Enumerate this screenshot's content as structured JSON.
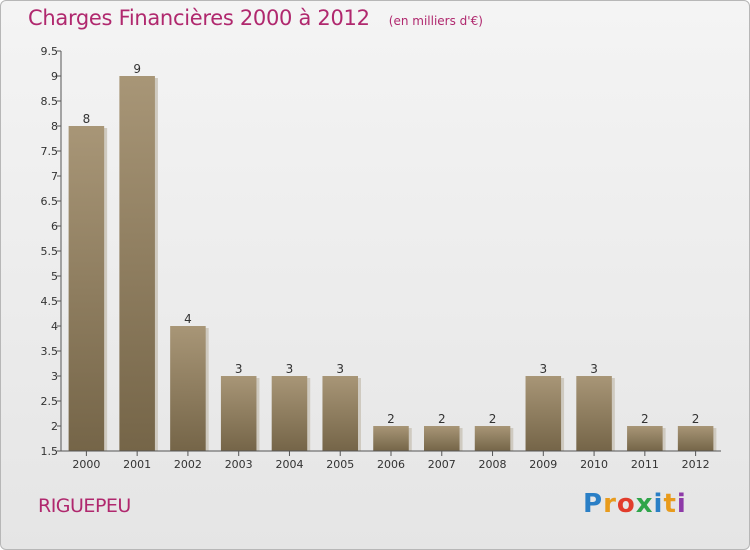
{
  "header": {
    "title": "Charges Financières 2000 à 2012",
    "subtitle": "(en milliers d'€)"
  },
  "footer": {
    "commune": "RIGUEPEU",
    "brand": "Proxiti",
    "brand_colors": [
      "#2a7fc6",
      "#e89b1c",
      "#e23c2c",
      "#2fa54a",
      "#2a7fc6",
      "#e89b1c",
      "#8e3aa8"
    ]
  },
  "chart_data": {
    "type": "bar",
    "title": "Charges Financières 2000 à 2012",
    "subtitle": "(en milliers d'€)",
    "categories": [
      "2000",
      "2001",
      "2002",
      "2003",
      "2004",
      "2005",
      "2006",
      "2007",
      "2008",
      "2009",
      "2010",
      "2011",
      "2012"
    ],
    "values": [
      8,
      9,
      4,
      3,
      3,
      3,
      2,
      2,
      2,
      3,
      3,
      2,
      2
    ],
    "ylim": [
      1.5,
      9.5
    ],
    "yticks": [
      "1.5",
      "2",
      "2.5",
      "3",
      "3.5",
      "4",
      "4.5",
      "5",
      "5.5",
      "6",
      "6.5",
      "7",
      "7.5",
      "8",
      "8.5",
      "9",
      "9.5"
    ],
    "grid": false,
    "bar_color": "#8c7b5e"
  }
}
